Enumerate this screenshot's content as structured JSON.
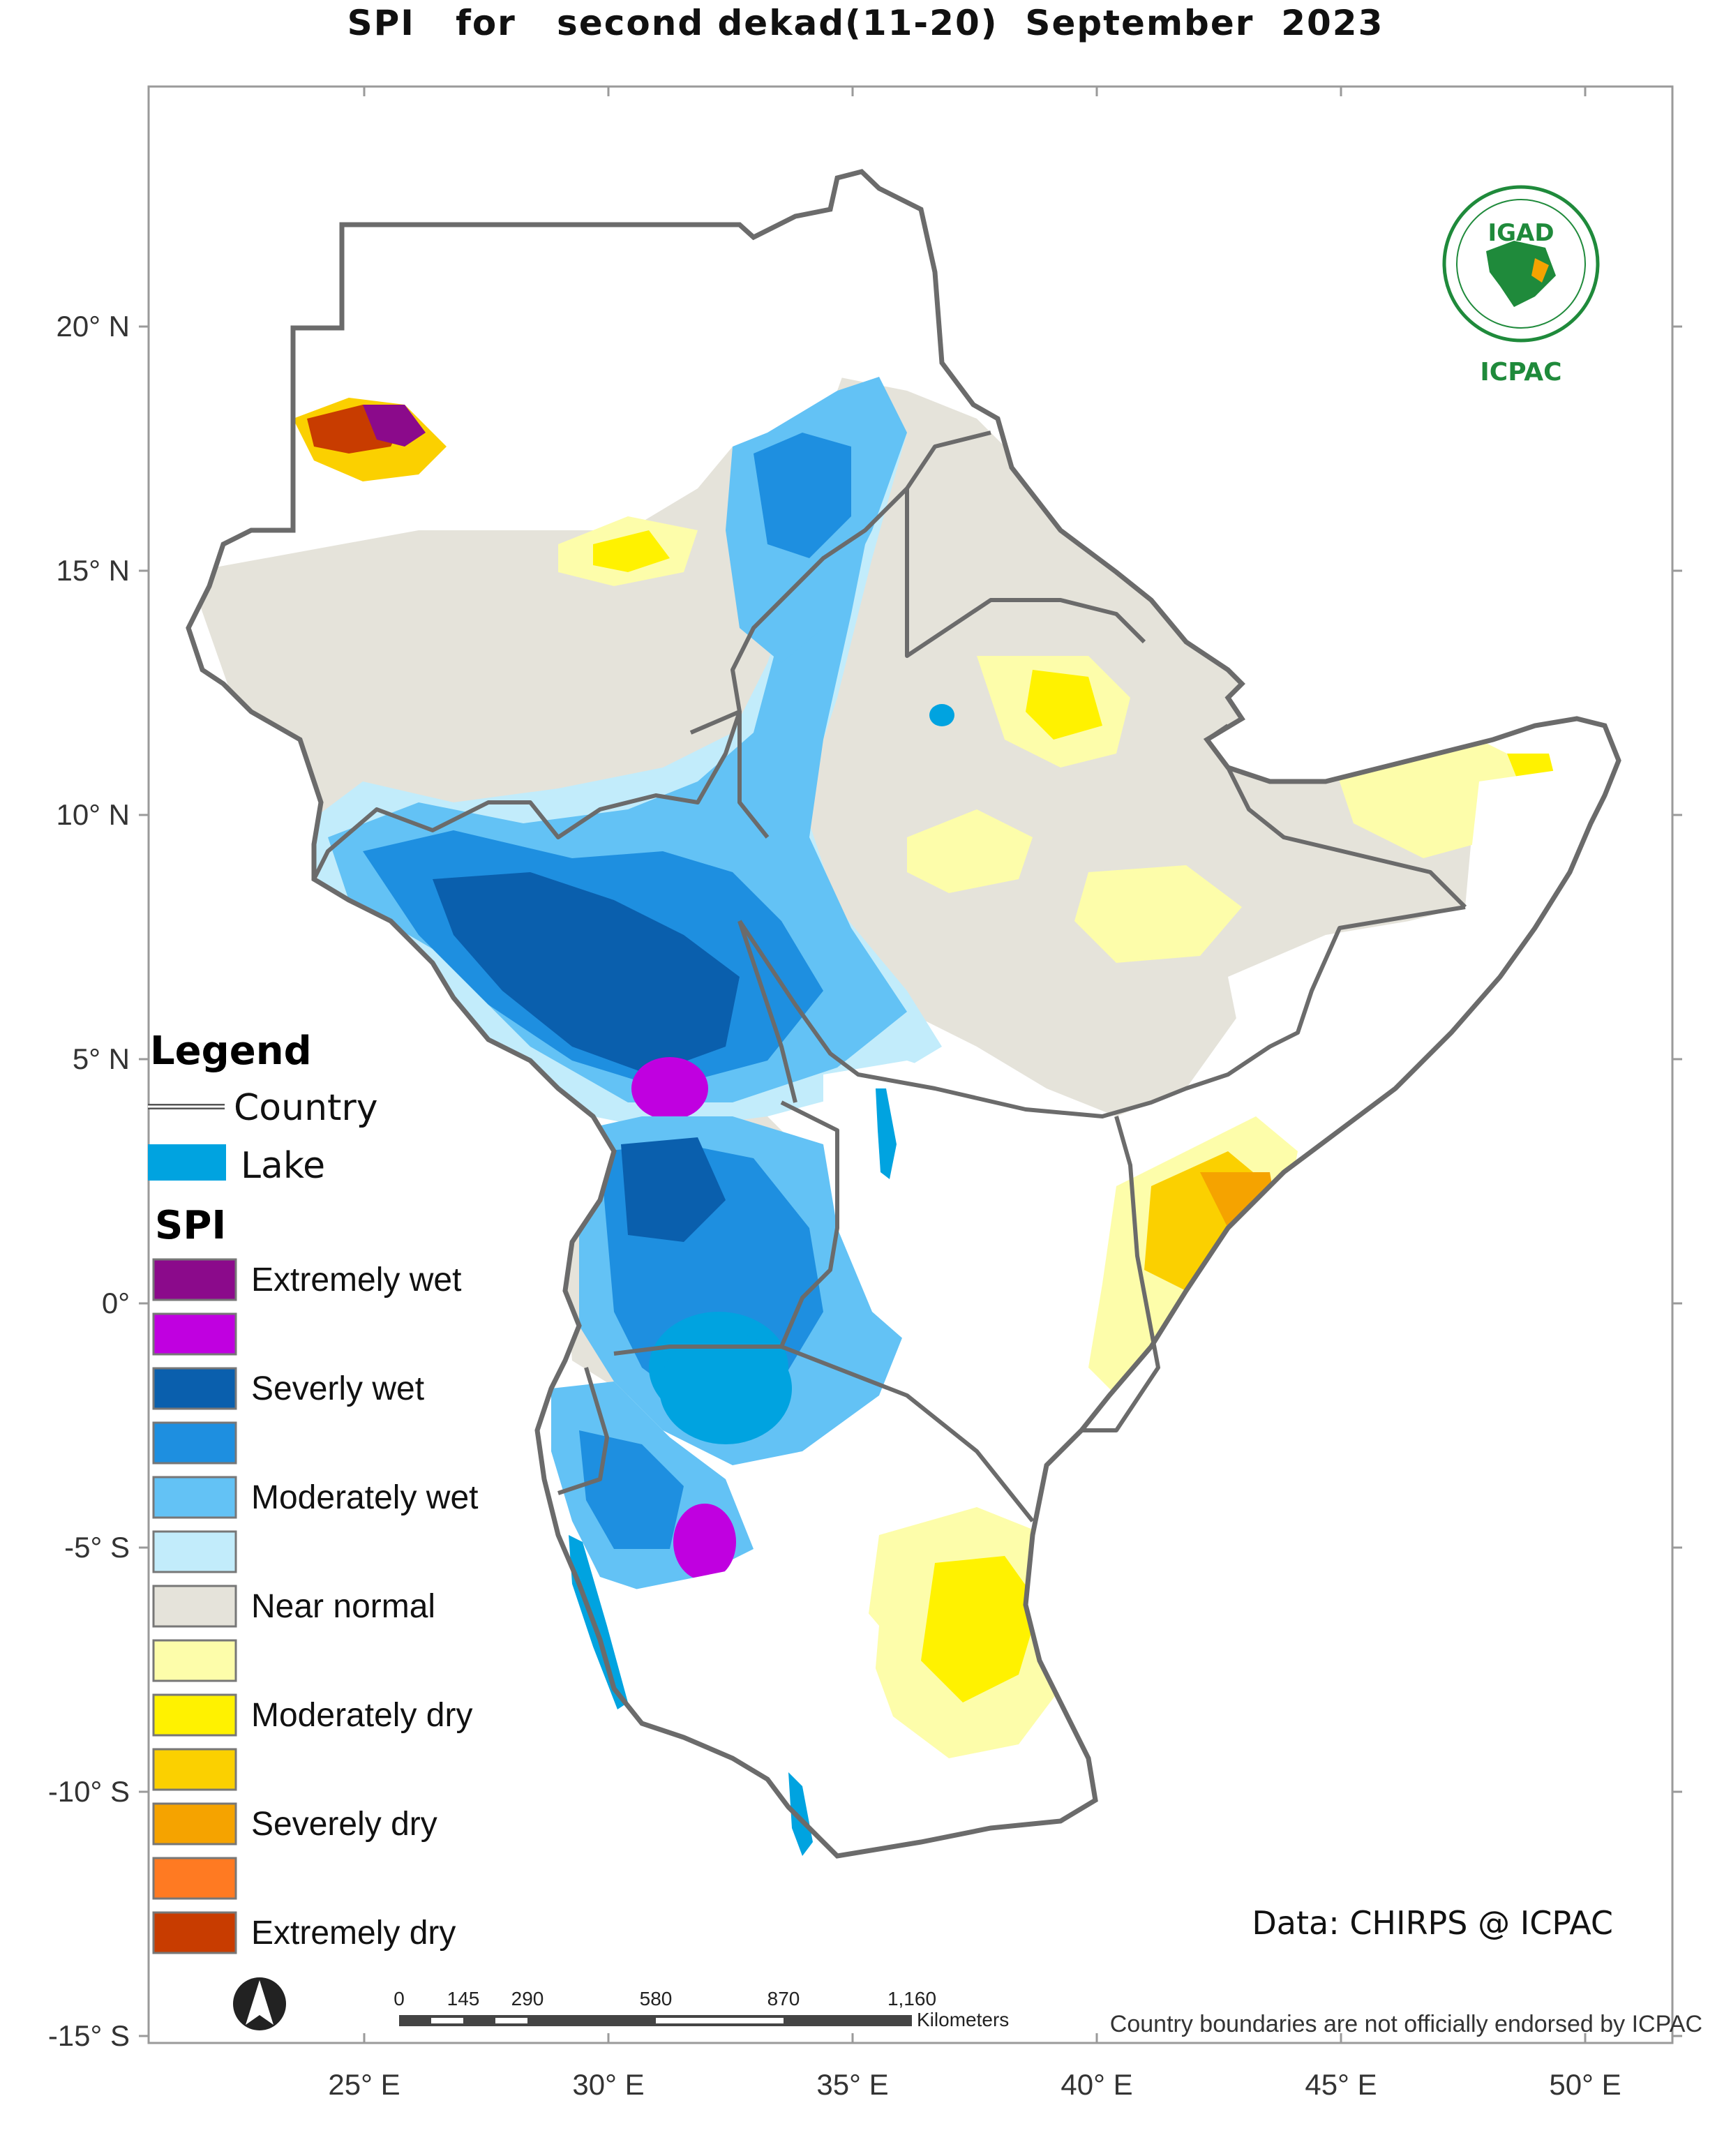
{
  "title": "SPI   for   second dekad(11-20)  September  2023",
  "colors": {
    "country_border": "#6b6b6b",
    "lake": "#00a3e0",
    "near_normal": "#e5e3da",
    "logo_green": "#1f8a3b"
  },
  "axes": {
    "x_ticks": [
      "25° E",
      "30° E",
      "35° E",
      "40° E",
      "45° E",
      "50° E"
    ],
    "y_ticks": [
      "20° N",
      "15° N",
      "10° N",
      "5° N",
      "0°",
      "-5° S",
      "-10° S",
      "-15° S"
    ]
  },
  "legend": {
    "heading": "Legend",
    "country_label": "Country",
    "lake_label": "Lake",
    "spi_heading": "SPI",
    "classes": [
      {
        "label": "Extremely wet",
        "color": "#8b0a8b"
      },
      {
        "label": "",
        "color": "#c000e0"
      },
      {
        "label": "Severly wet",
        "color": "#0a5fad"
      },
      {
        "label": "",
        "color": "#1e8fe0"
      },
      {
        "label": "Moderately wet",
        "color": "#63c2f5"
      },
      {
        "label": "",
        "color": "#c2ecfb"
      },
      {
        "label": "Near normal",
        "color": "#e5e3da"
      },
      {
        "label": "",
        "color": "#fdfdaa"
      },
      {
        "label": "Moderately dry",
        "color": "#fff200"
      },
      {
        "label": "",
        "color": "#fbd000"
      },
      {
        "label": "Severely dry",
        "color": "#f5a300"
      },
      {
        "label": "",
        "color": "#ff7a22"
      },
      {
        "label": "Extremely dry",
        "color": "#c83c00"
      }
    ]
  },
  "credit": "Data: CHIRPS @ ICPAC",
  "scale_bar": {
    "ticks": [
      "0",
      "145",
      "290",
      "580",
      "870",
      "1,160"
    ],
    "unit": "Kilometers"
  },
  "disclaimer": "Country boundaries are not officially endorsed by ICPAC",
  "logo": {
    "top_text": "IGAD",
    "bottom_text": "ICPAC",
    "icon": "igad-emblem-icon"
  },
  "north_arrow_icon": "north-arrow-icon"
}
